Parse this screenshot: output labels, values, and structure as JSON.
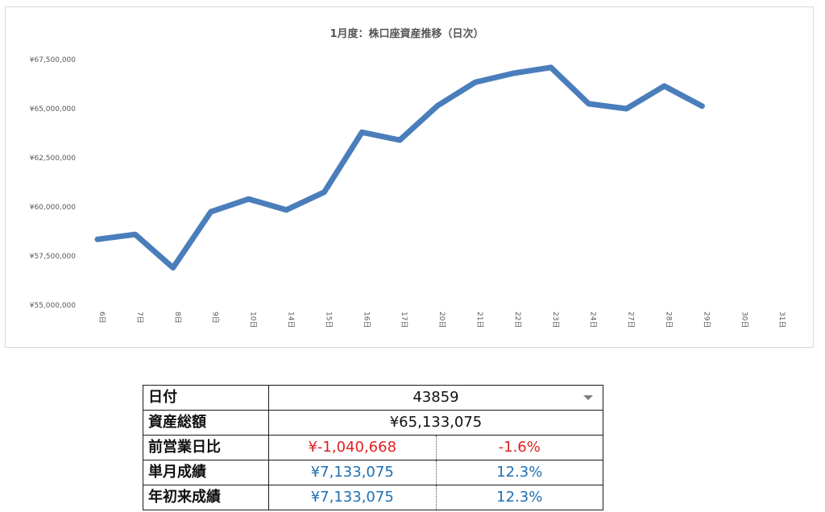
{
  "chart_data": {
    "type": "line",
    "title": "1月度：株口座資産推移（日次）",
    "categories": [
      "6日",
      "7日",
      "8日",
      "9日",
      "10日",
      "14日",
      "15日",
      "16日",
      "17日",
      "20日",
      "21日",
      "22日",
      "23日",
      "24日",
      "27日",
      "28日",
      "29日",
      "30日",
      "31日"
    ],
    "series": [
      {
        "values": [
          58350000,
          58600000,
          56900000,
          59750000,
          60400000,
          59850000,
          60750000,
          63800000,
          63400000,
          65150000,
          66350000,
          66800000,
          67100000,
          65250000,
          65000000,
          66150000,
          65133075,
          null,
          null
        ]
      }
    ],
    "yticks": [
      "¥55,000,000",
      "¥57,500,000",
      "¥60,000,000",
      "¥62,500,000",
      "¥65,000,000",
      "¥67,500,000"
    ],
    "ylim": [
      55000000,
      67500000
    ],
    "line_color": "#4a7ebb",
    "grid": false,
    "legend": "none"
  },
  "table": {
    "rows": {
      "date": {
        "label": "日付",
        "value": "43859"
      },
      "total": {
        "label": "資産総額",
        "value": "¥65,133,075"
      },
      "prev_day": {
        "label": "前営業日比",
        "amount": "¥-1,040,668",
        "percent": "-1.6%"
      },
      "month": {
        "label": "単月成績",
        "amount": "¥7,133,075",
        "percent": "12.3%"
      },
      "ytd": {
        "label": "年初来成績",
        "amount": "¥7,133,075",
        "percent": "12.3%"
      }
    },
    "colors": {
      "negative": "#e02020",
      "positive": "#1f6fb4"
    },
    "icons": {
      "date_dropdown": "dropdown-arrow-icon"
    }
  }
}
